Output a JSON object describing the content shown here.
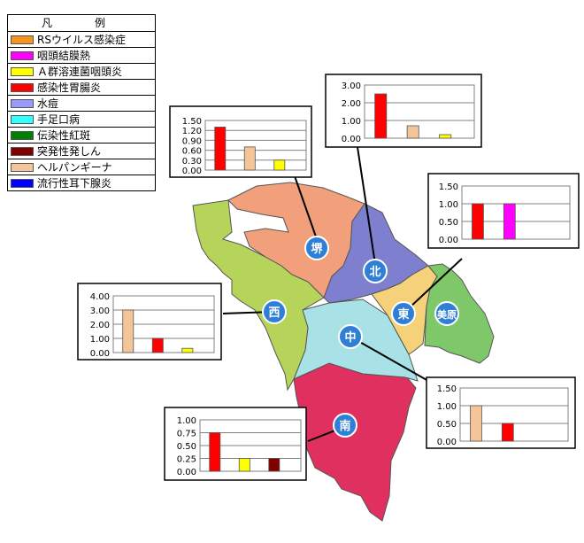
{
  "legend": {
    "title": "凡　例",
    "items": [
      {
        "label": "RSウイルス感染症",
        "color": "#f7941d"
      },
      {
        "label": "咽頭結膜熱",
        "color": "#ff00ff"
      },
      {
        "label": "Ａ群溶連菌咽頭炎",
        "color": "#ffff00"
      },
      {
        "label": "感染性胃腸炎",
        "color": "#ff0000"
      },
      {
        "label": "水痘",
        "color": "#9999ff"
      },
      {
        "label": "手足口病",
        "color": "#33ffff"
      },
      {
        "label": "伝染性紅斑",
        "color": "#008000"
      },
      {
        "label": "突発性発しん",
        "color": "#800000"
      },
      {
        "label": "ヘルパンギーナ",
        "color": "#f5c59a"
      },
      {
        "label": "流行性耳下腺炎",
        "color": "#0000ff"
      }
    ]
  },
  "districts": [
    {
      "label": "堺",
      "fill": "#f2a07b"
    },
    {
      "label": "北",
      "fill": "#7f7fcf"
    },
    {
      "label": "東",
      "fill": "#f5d17a"
    },
    {
      "label": "美原",
      "fill": "#7fc86a"
    },
    {
      "label": "西",
      "fill": "#b6d45a"
    },
    {
      "label": "中",
      "fill": "#a8e2e6"
    },
    {
      "label": "南",
      "fill": "#e0305f"
    }
  ],
  "chart_data": [
    {
      "type": "bar",
      "district": "堺",
      "ylim": [
        0,
        1.5
      ],
      "yticks": [
        "1.50",
        "1.20",
        "0.90",
        "0.60",
        "0.30",
        "0.00"
      ],
      "bars": [
        {
          "value": 1.3,
          "color": "#ff0000"
        },
        {
          "value": 0.7,
          "color": "#f5c59a"
        },
        {
          "value": 0.3,
          "color": "#ffff00"
        }
      ]
    },
    {
      "type": "bar",
      "district": "北",
      "ylim": [
        0,
        3.0
      ],
      "yticks": [
        "3.00",
        "2.00",
        "1.00",
        "0.00"
      ],
      "bars": [
        {
          "value": 2.5,
          "color": "#ff0000"
        },
        {
          "value": 0.7,
          "color": "#f5c59a"
        },
        {
          "value": 0.2,
          "color": "#ffff00"
        }
      ]
    },
    {
      "type": "bar",
      "district": "東",
      "ylim": [
        0,
        1.5
      ],
      "yticks": [
        "1.50",
        "1.00",
        "0.50",
        "0.00"
      ],
      "bars": [
        {
          "value": 1.0,
          "color": "#ff0000"
        },
        {
          "value": 1.0,
          "color": "#ff00ff"
        }
      ]
    },
    {
      "type": "bar",
      "district": "西",
      "ylim": [
        0,
        4.0
      ],
      "yticks": [
        "4.00",
        "3.00",
        "2.00",
        "1.00",
        "0.00"
      ],
      "bars": [
        {
          "value": 3.0,
          "color": "#f5c59a"
        },
        {
          "value": 1.0,
          "color": "#ff0000"
        },
        {
          "value": 0.3,
          "color": "#ffff00"
        }
      ]
    },
    {
      "type": "bar",
      "district": "中",
      "ylim": [
        0,
        1.5
      ],
      "yticks": [
        "1.50",
        "1.00",
        "0.50",
        "0.00"
      ],
      "bars": [
        {
          "value": 1.0,
          "color": "#f5c59a"
        },
        {
          "value": 0.5,
          "color": "#ff0000"
        }
      ]
    },
    {
      "type": "bar",
      "district": "南",
      "ylim": [
        0,
        1.0
      ],
      "yticks": [
        "1.00",
        "0.75",
        "0.50",
        "0.25",
        "0.00"
      ],
      "bars": [
        {
          "value": 0.75,
          "color": "#ff0000"
        },
        {
          "value": 0.25,
          "color": "#ffff00"
        },
        {
          "value": 0.25,
          "color": "#800000"
        }
      ]
    }
  ]
}
